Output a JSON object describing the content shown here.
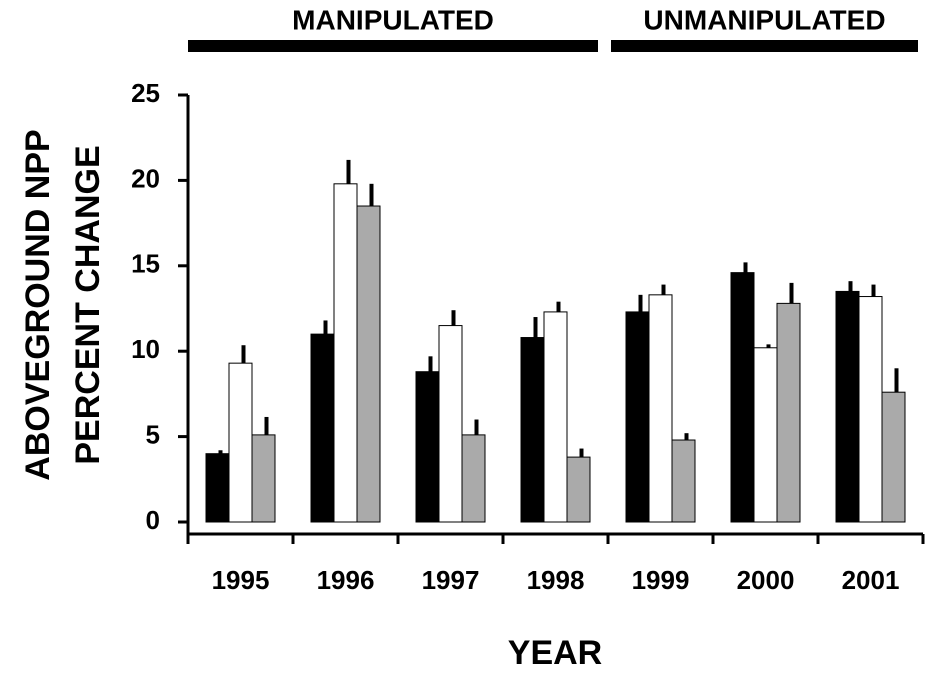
{
  "chart_data": {
    "type": "bar",
    "categories": [
      "1995",
      "1996",
      "1997",
      "1998",
      "1999",
      "2000",
      "2001"
    ],
    "series": [
      {
        "color": "#000000",
        "values": [
          4.0,
          11.0,
          8.8,
          10.8,
          12.3,
          14.6,
          13.5
        ],
        "errors": [
          0.2,
          0.8,
          0.9,
          1.2,
          1.0,
          0.6,
          0.6
        ]
      },
      {
        "color": "#ffffff",
        "values": [
          9.3,
          19.8,
          11.5,
          12.3,
          13.3,
          10.2,
          13.2
        ],
        "errors": [
          1.05,
          1.4,
          0.9,
          0.6,
          0.6,
          0.2,
          0.7
        ]
      },
      {
        "color": "#aaaaaa",
        "values": [
          5.1,
          18.5,
          5.1,
          3.8,
          4.8,
          12.8,
          7.6
        ],
        "errors": [
          1.05,
          1.3,
          0.9,
          0.5,
          0.4,
          1.2,
          1.4
        ]
      }
    ],
    "ylim": [
      0,
      25
    ],
    "yticks": [
      0,
      5,
      10,
      15,
      20,
      25
    ],
    "xlabel": "YEAR",
    "ylabel": [
      "ABOVEGROUND NPP",
      "PERCENT CHANGE"
    ],
    "groups": [
      "MANIPULATED",
      "UNMANIPULATED"
    ]
  }
}
